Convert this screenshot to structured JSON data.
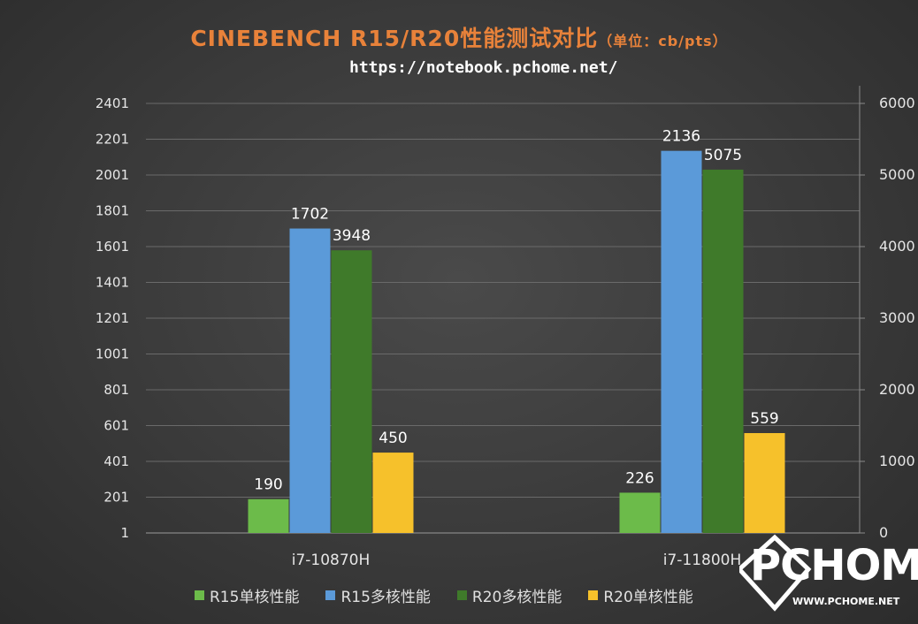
{
  "header": {
    "title": "CINEBENCH R15/R20性能测试对比",
    "unit": "（单位：cb/pts）",
    "url": "https://notebook.pchome.net/"
  },
  "watermark": {
    "logo": "PCHOME",
    "site": "WWW.PCHOME.NET"
  },
  "chart_data": {
    "type": "bar",
    "title": "CINEBENCH R15/R20性能测试对比",
    "categories": [
      "i7-10870H",
      "i7-11800H"
    ],
    "series": [
      {
        "name": "R15单核性能",
        "values": [
          190,
          226
        ],
        "axis": "left",
        "color": "#6cbb4a"
      },
      {
        "name": "R15多核性能",
        "values": [
          1702,
          2136
        ],
        "axis": "left",
        "color": "#5b9ad9"
      },
      {
        "name": "R20多核性能",
        "values": [
          3948,
          5075
        ],
        "axis": "right",
        "color": "#3f7a2a"
      },
      {
        "name": "R20单核性能",
        "values": [
          450,
          559
        ],
        "axis": "left",
        "color": "#f6c12b"
      }
    ],
    "y_left": {
      "ticks": [
        "1",
        "201",
        "401",
        "601",
        "801",
        "1001",
        "1201",
        "1401",
        "1601",
        "1801",
        "2001",
        "2201",
        "2401"
      ],
      "min": 1,
      "max": 2401
    },
    "y_right": {
      "ticks": [
        "0",
        "1000",
        "2000",
        "3000",
        "4000",
        "5000",
        "6000"
      ],
      "min": 0,
      "max": 6000
    },
    "grid": true,
    "legend_position": "bottom"
  }
}
